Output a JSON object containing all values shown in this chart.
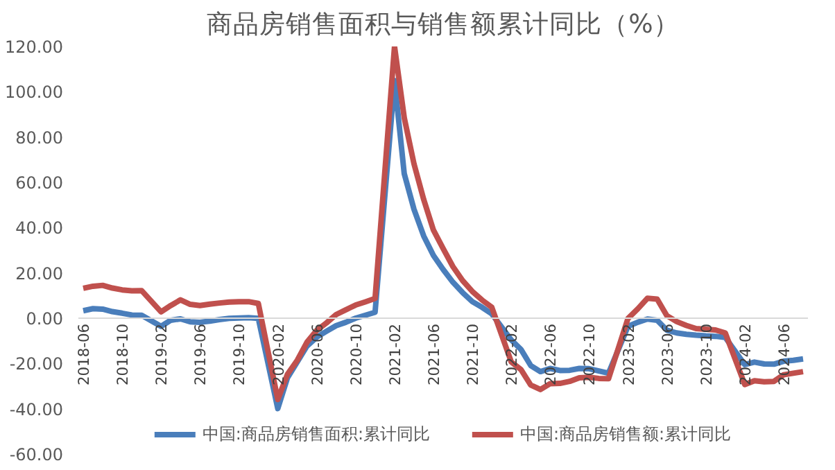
{
  "chart_data": {
    "type": "line",
    "title": "商品房销售面积与销售额累计同比（%）",
    "categories": [
      "2018-06",
      null,
      null,
      null,
      "2018-10",
      null,
      null,
      null,
      "2019-02",
      null,
      null,
      null,
      "2019-06",
      null,
      null,
      null,
      "2019-10",
      null,
      null,
      null,
      "2020-02",
      null,
      null,
      null,
      "2020-06",
      null,
      null,
      null,
      "2020-10",
      null,
      null,
      null,
      "2021-02",
      null,
      null,
      null,
      "2021-06",
      null,
      null,
      null,
      "2021-10",
      null,
      null,
      null,
      "2022-02",
      null,
      null,
      null,
      "2022-06",
      null,
      null,
      null,
      "2022-10",
      null,
      null,
      null,
      "2023-02",
      null,
      null,
      null,
      "2023-06",
      null,
      null,
      null,
      "2023-10",
      null,
      null,
      null,
      "2024-02",
      null,
      null,
      null,
      "2024-06",
      null,
      null
    ],
    "series": [
      {
        "name": "中国:商品房销售面积:累计同比",
        "color": "#4a7ebb",
        "values": [
          3.3,
          4.2,
          4.0,
          2.9,
          2.2,
          1.4,
          1.3,
          null,
          -3.6,
          -0.9,
          -0.3,
          -1.6,
          -1.8,
          -1.3,
          -0.6,
          -0.1,
          0.1,
          0.2,
          -0.1,
          null,
          -39.9,
          -26.3,
          -19.3,
          -12.3,
          -8.4,
          -5.8,
          -3.3,
          -1.8,
          0.0,
          1.3,
          2.6,
          null,
          104.9,
          63.8,
          48.1,
          36.3,
          27.7,
          21.5,
          15.9,
          11.3,
          7.3,
          4.8,
          1.9,
          null,
          -9.6,
          -13.8,
          -20.9,
          -23.6,
          -22.2,
          -23.1,
          -23.0,
          -22.2,
          -22.3,
          -23.3,
          -24.3,
          null,
          -3.6,
          -1.8,
          -0.4,
          -0.9,
          -5.3,
          -6.5,
          -7.1,
          -7.5,
          -7.8,
          -8.0,
          -8.5,
          null,
          -20.5,
          -19.4,
          -20.2,
          -20.3,
          -19.0,
          -18.6,
          -18.0
        ]
      },
      {
        "name": "中国:商品房销售额:累计同比",
        "color": "#c0504d",
        "values": [
          13.2,
          14.1,
          14.5,
          13.3,
          12.5,
          12.1,
          12.2,
          null,
          2.8,
          5.6,
          8.1,
          6.1,
          5.6,
          6.2,
          6.7,
          7.1,
          7.3,
          7.3,
          6.5,
          null,
          -35.9,
          -24.7,
          -18.6,
          -10.6,
          -5.4,
          -2.1,
          1.6,
          3.7,
          5.8,
          7.2,
          8.7,
          null,
          120,
          88.5,
          68.2,
          52.4,
          38.9,
          30.7,
          22.8,
          16.6,
          11.8,
          8.0,
          4.8,
          null,
          -19.3,
          -22.7,
          -29.5,
          -31.5,
          -28.9,
          -28.8,
          -27.9,
          -26.3,
          -26.1,
          -26.6,
          -26.7,
          null,
          -0.1,
          4.1,
          8.8,
          8.4,
          1.1,
          -1.5,
          -3.2,
          -4.6,
          -4.9,
          -5.2,
          -6.5,
          null,
          -29.3,
          -27.6,
          -28.1,
          -27.9,
          -25.0,
          -24.3,
          -23.6
        ]
      }
    ],
    "ylim": [
      -60,
      120
    ],
    "yticks": [
      {
        "value": -60,
        "label": "-60.00"
      },
      {
        "value": -40,
        "label": "-40.00"
      },
      {
        "value": -20,
        "label": "-20.00"
      },
      {
        "value": 0,
        "label": "0.00"
      },
      {
        "value": 20,
        "label": "20.00"
      },
      {
        "value": 40,
        "label": "40.00"
      },
      {
        "value": 60,
        "label": "60.00"
      },
      {
        "value": 80,
        "label": "80.00"
      },
      {
        "value": 100,
        "label": "100.00"
      },
      {
        "value": 120,
        "label": "120.00"
      }
    ],
    "grid": false,
    "legend": "bottom",
    "marker": "none",
    "line_style": "solid"
  }
}
